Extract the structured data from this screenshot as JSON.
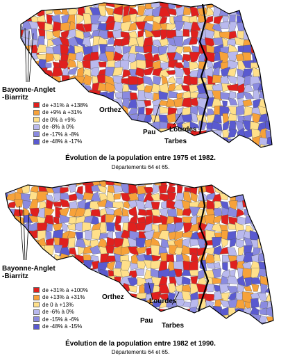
{
  "colors": {
    "class1": "#e0201e",
    "class2": "#f7a23a",
    "class3": "#ffe08a",
    "class4": "#b9b9ee",
    "class5": "#8a8ae0",
    "class6": "#5a5ad0",
    "border": "#000000"
  },
  "maps": [
    {
      "title": "Évolution de la population entre 1975 et 1982.",
      "subtitle": "Départements 64 et 65.",
      "city_bayonne": "Bayonne-Anglet\n-Biarritz",
      "city_orthez": "Orthez",
      "city_pau": "Pau",
      "city_lourdes": "Lourdes",
      "city_tarbes": "Tarbes",
      "legend": [
        "de +31% à +138%",
        "de +9% à +31%",
        "de 0% à +9%",
        "de -8% à 0%",
        "de -17% à -8%",
        "de -48% à -17%"
      ]
    },
    {
      "title": "Évolution de la population entre 1982 et 1990.",
      "subtitle": "Départements 64 et 65.",
      "city_bayonne": "Bayonne-Anglet\n-Biarritz",
      "city_orthez": "Orthez",
      "city_pau": "Pau",
      "city_lourdes": "Lourdes",
      "city_tarbes": "Tarbes",
      "legend": [
        "de +31% à +100%",
        "de +13% à +31%",
        "de 0 à +13%",
        "de -6% à 0%",
        "de -15% à -6%",
        "de -48% à -15%"
      ]
    }
  ]
}
